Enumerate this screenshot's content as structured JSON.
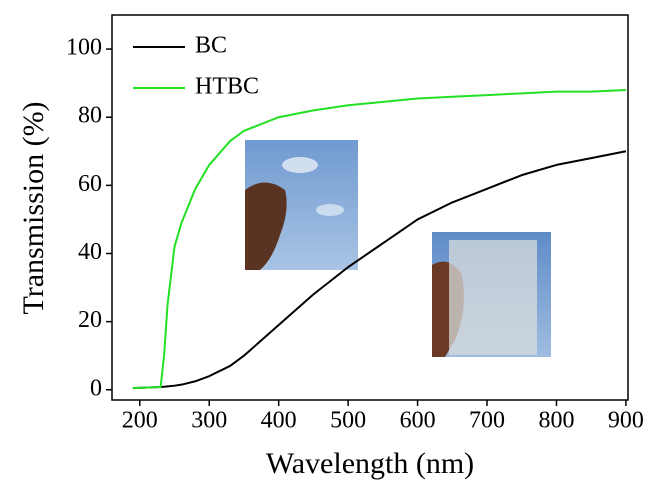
{
  "chart_data": {
    "type": "line",
    "x_label": "Wavelength (nm)",
    "y_label": "Transmission (%)",
    "x": [
      190,
      230,
      235,
      240,
      250,
      260,
      280,
      300,
      330,
      350,
      400,
      450,
      500,
      550,
      600,
      650,
      700,
      750,
      800,
      850,
      900
    ],
    "series": [
      {
        "name": "BC",
        "color": "#000000",
        "values": [
          0.5,
          0.8,
          0.9,
          1,
          1.2,
          1.5,
          2.5,
          4,
          7,
          10,
          19,
          28,
          36,
          43,
          50,
          55,
          59,
          63,
          66,
          68,
          70
        ]
      },
      {
        "name": "HTBC",
        "color": "#22e022",
        "values": [
          0.5,
          0.8,
          10,
          25,
          42,
          49,
          59,
          66,
          73,
          76,
          80,
          82,
          83.5,
          84.5,
          85.5,
          86,
          86.5,
          87,
          87.5,
          87.5,
          88
        ]
      }
    ],
    "xlim": [
      160,
      903
    ],
    "ylim": [
      -3,
      110
    ],
    "xticks": [
      200,
      300,
      400,
      500,
      600,
      700,
      800,
      900
    ],
    "yticks": [
      0,
      20,
      40,
      60,
      80,
      100
    ],
    "legend": "upper left"
  }
}
